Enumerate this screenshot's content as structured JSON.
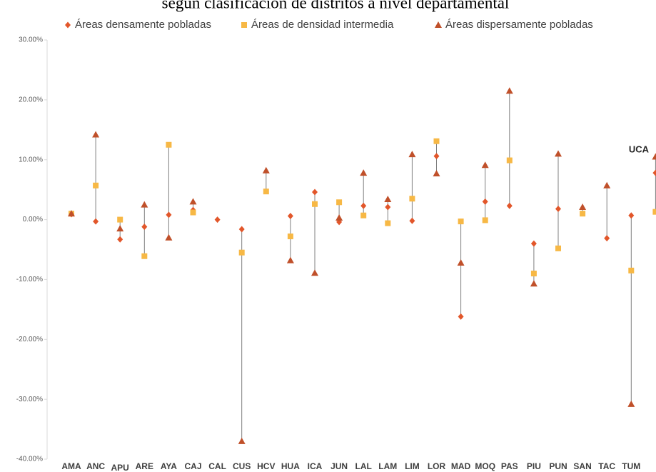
{
  "chart_data": {
    "type": "dot_range",
    "title": "según clasificación de distritos a nivel departamental",
    "categories": [
      "AMA",
      "ANC",
      "APU",
      "ARE",
      "AYA",
      "CAJ",
      "CAL",
      "CUS",
      "HCV",
      "HUA",
      "ICA",
      "JUN",
      "LAL",
      "LAM",
      "LIM",
      "LOR",
      "MAD",
      "MOQ",
      "PAS",
      "PIU",
      "PUN",
      "SAN",
      "TAC",
      "TUM",
      "UCA"
    ],
    "series": [
      {
        "name": "Áreas densamente pobladas",
        "color": "#e2562a",
        "marker": "diamond",
        "values": [
          0.9,
          -0.3,
          -3.3,
          -1.2,
          0.8,
          1.6,
          0.0,
          -1.6,
          null,
          0.6,
          4.6,
          -0.4,
          2.3,
          2.1,
          -0.2,
          10.6,
          -16.2,
          3.0,
          2.3,
          -4.0,
          1.8,
          null,
          -3.1,
          0.7,
          7.8
        ]
      },
      {
        "name": "Áreas de densidad intermedia",
        "color": "#f7b845",
        "marker": "square",
        "values": [
          1.0,
          5.7,
          0.0,
          -6.1,
          12.5,
          1.2,
          null,
          -5.5,
          4.7,
          -2.8,
          2.6,
          2.9,
          0.7,
          -0.6,
          3.5,
          13.1,
          -0.3,
          -0.1,
          9.9,
          -9.0,
          -4.8,
          1.0,
          null,
          -8.5,
          1.3
        ]
      },
      {
        "name": "Áreas dispersamente pobladas",
        "color": "#c0502a",
        "marker": "triangle",
        "values": [
          1.0,
          14.2,
          -1.5,
          2.5,
          -3.0,
          3.0,
          null,
          -37.0,
          8.2,
          -6.8,
          -8.9,
          0.3,
          7.8,
          3.4,
          10.9,
          7.7,
          -7.2,
          9.1,
          21.5,
          -10.7,
          11.0,
          2.1,
          5.7,
          -30.8,
          10.5
        ]
      }
    ],
    "ylim": [
      -40,
      30
    ],
    "yticks": [
      {
        "value": -40,
        "label": "-40.00%"
      },
      {
        "value": -30,
        "label": "-30.00%"
      },
      {
        "value": -20,
        "label": "-20.00%"
      },
      {
        "value": -10,
        "label": "-10.00%"
      },
      {
        "value": 0,
        "label": "0.00%"
      },
      {
        "value": 10,
        "label": "10.00%"
      },
      {
        "value": 20,
        "label": "20.00%"
      },
      {
        "value": 30,
        "label": "30.00%"
      }
    ],
    "range_lines": true
  }
}
